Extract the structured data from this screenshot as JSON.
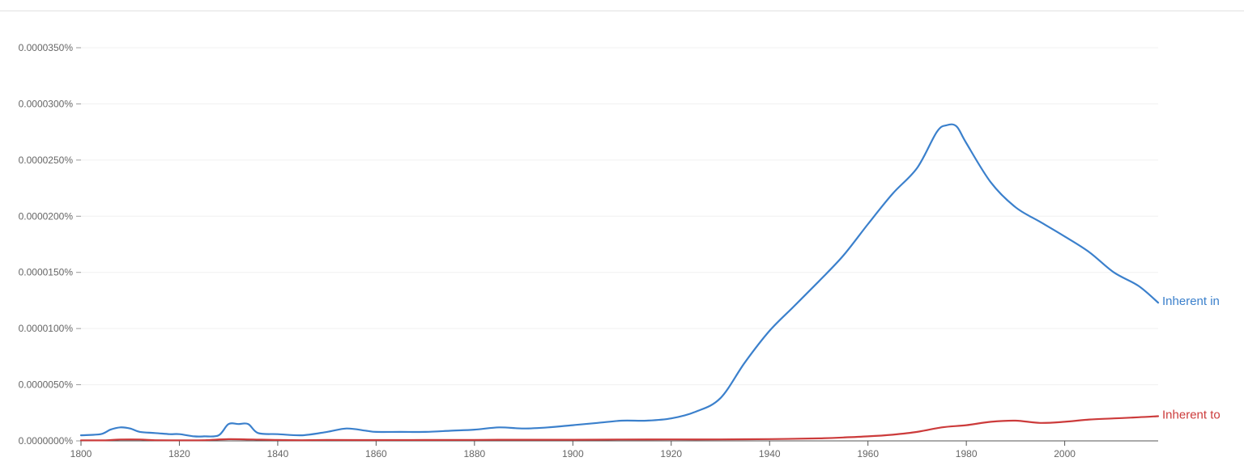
{
  "chart_data": {
    "type": "line",
    "title": "",
    "xlabel": "",
    "ylabel": "",
    "xlim": [
      1800,
      2019
    ],
    "ylim": [
      0,
      3.5e-05
    ],
    "x_ticks": [
      {
        "value": 1800,
        "label": "1800"
      },
      {
        "value": 1820,
        "label": "1820"
      },
      {
        "value": 1840,
        "label": "1840"
      },
      {
        "value": 1860,
        "label": "1860"
      },
      {
        "value": 1880,
        "label": "1880"
      },
      {
        "value": 1900,
        "label": "1900"
      },
      {
        "value": 1920,
        "label": "1920"
      },
      {
        "value": 1940,
        "label": "1940"
      },
      {
        "value": 1960,
        "label": "1960"
      },
      {
        "value": 1980,
        "label": "1980"
      },
      {
        "value": 2000,
        "label": "2000"
      }
    ],
    "y_ticks": [
      {
        "value": 0,
        "label": "0.0000000%"
      },
      {
        "value": 5e-06,
        "label": "0.0000050%"
      },
      {
        "value": 1e-05,
        "label": "0.0000100%"
      },
      {
        "value": 1.5e-05,
        "label": "0.0000150%"
      },
      {
        "value": 2e-05,
        "label": "0.0000200%"
      },
      {
        "value": 2.5e-05,
        "label": "0.0000250%"
      },
      {
        "value": 3e-05,
        "label": "0.0000300%"
      },
      {
        "value": 3.5e-05,
        "label": "0.0000350%"
      }
    ],
    "grid": true,
    "legend": "end-of-line labels",
    "series": [
      {
        "name": "Inherent in",
        "color": "#3b80cc",
        "x": [
          1800,
          1804,
          1806,
          1808,
          1810,
          1812,
          1815,
          1818,
          1820,
          1823,
          1825,
          1828,
          1830,
          1832,
          1834,
          1836,
          1840,
          1845,
          1850,
          1854,
          1858,
          1860,
          1865,
          1870,
          1875,
          1880,
          1885,
          1890,
          1895,
          1900,
          1905,
          1910,
          1915,
          1920,
          1925,
          1930,
          1935,
          1940,
          1945,
          1950,
          1955,
          1960,
          1965,
          1970,
          1974,
          1976,
          1978,
          1980,
          1985,
          1990,
          1995,
          2000,
          2005,
          2010,
          2015,
          2019
        ],
        "values": [
          5e-07,
          6e-07,
          1e-06,
          1.2e-06,
          1.1e-06,
          8e-07,
          7e-07,
          6e-07,
          6e-07,
          4e-07,
          4e-07,
          5e-07,
          1.5e-06,
          1.5e-06,
          1.5e-06,
          7e-07,
          6e-07,
          5e-07,
          8e-07,
          1.1e-06,
          9e-07,
          8e-07,
          8e-07,
          8e-07,
          9e-07,
          1e-06,
          1.2e-06,
          1.1e-06,
          1.2e-06,
          1.4e-06,
          1.6e-06,
          1.8e-06,
          1.8e-06,
          2e-06,
          2.6e-06,
          3.8e-06,
          7e-06,
          9.8e-06,
          1.2e-05,
          1.42e-05,
          1.65e-05,
          1.93e-05,
          2.2e-05,
          2.43e-05,
          2.75e-05,
          2.81e-05,
          2.8e-05,
          2.65e-05,
          2.3e-05,
          2.08e-05,
          1.95e-05,
          1.82e-05,
          1.68e-05,
          1.5e-05,
          1.38e-05,
          1.23e-05
        ]
      },
      {
        "name": "Inherent to",
        "color": "#cc3b3b",
        "x": [
          1800,
          1805,
          1808,
          1812,
          1815,
          1820,
          1825,
          1830,
          1835,
          1840,
          1845,
          1850,
          1860,
          1870,
          1880,
          1890,
          1900,
          1910,
          1920,
          1930,
          1940,
          1950,
          1955,
          1960,
          1965,
          1970,
          1975,
          1980,
          1985,
          1990,
          1995,
          2000,
          2005,
          2010,
          2015,
          2019
        ],
        "values": [
          5e-08,
          5e-08,
          1.2e-07,
          1.2e-07,
          6e-08,
          5e-08,
          6e-08,
          1.5e-07,
          1.2e-07,
          8e-08,
          6e-08,
          8e-08,
          7e-08,
          8e-08,
          9e-08,
          1e-07,
          1e-07,
          1.2e-07,
          1.3e-07,
          1.3e-07,
          1.6e-07,
          2.2e-07,
          3e-07,
          4e-07,
          5.5e-07,
          8e-07,
          1.2e-06,
          1.4e-06,
          1.7e-06,
          1.8e-06,
          1.6e-06,
          1.7e-06,
          1.9e-06,
          2e-06,
          2.1e-06,
          2.2e-06
        ]
      }
    ]
  }
}
